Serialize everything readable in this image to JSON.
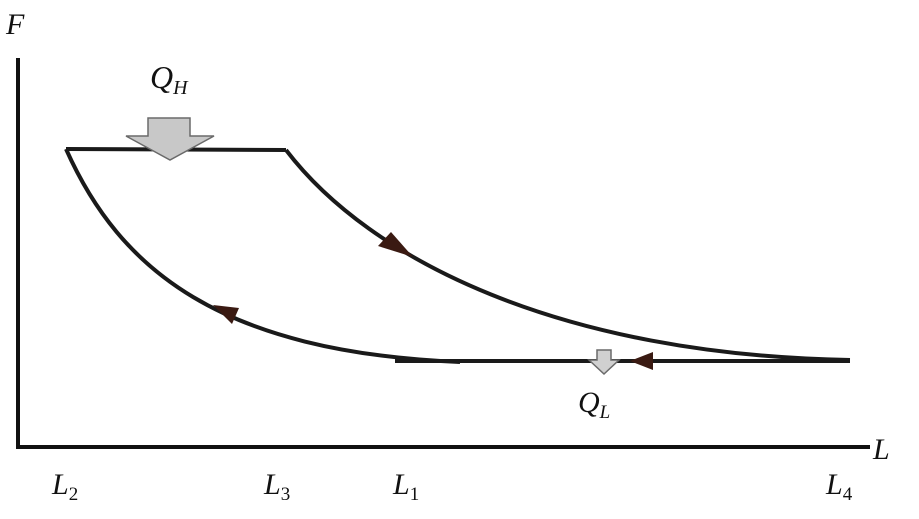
{
  "axes": {
    "y_label": "F",
    "x_label": "L"
  },
  "heat": {
    "in_label": "Q",
    "in_subscript": "H",
    "out_label": "Q",
    "out_subscript": "L"
  },
  "length_ticks": [
    {
      "id": "L2",
      "label": "L",
      "subscript": "2"
    },
    {
      "id": "L3",
      "label": "L",
      "subscript": "3"
    },
    {
      "id": "L1",
      "label": "L",
      "subscript": "1"
    },
    {
      "id": "L4",
      "label": "L",
      "subscript": "4"
    }
  ],
  "colors": {
    "axis": "#111111",
    "cycle_stroke": "#1a1a1a",
    "direction_arrow": "#3a1a12",
    "heat_arrow_fill": "#c8c8c8",
    "heat_arrow_stroke": "#6a6a6a"
  }
}
